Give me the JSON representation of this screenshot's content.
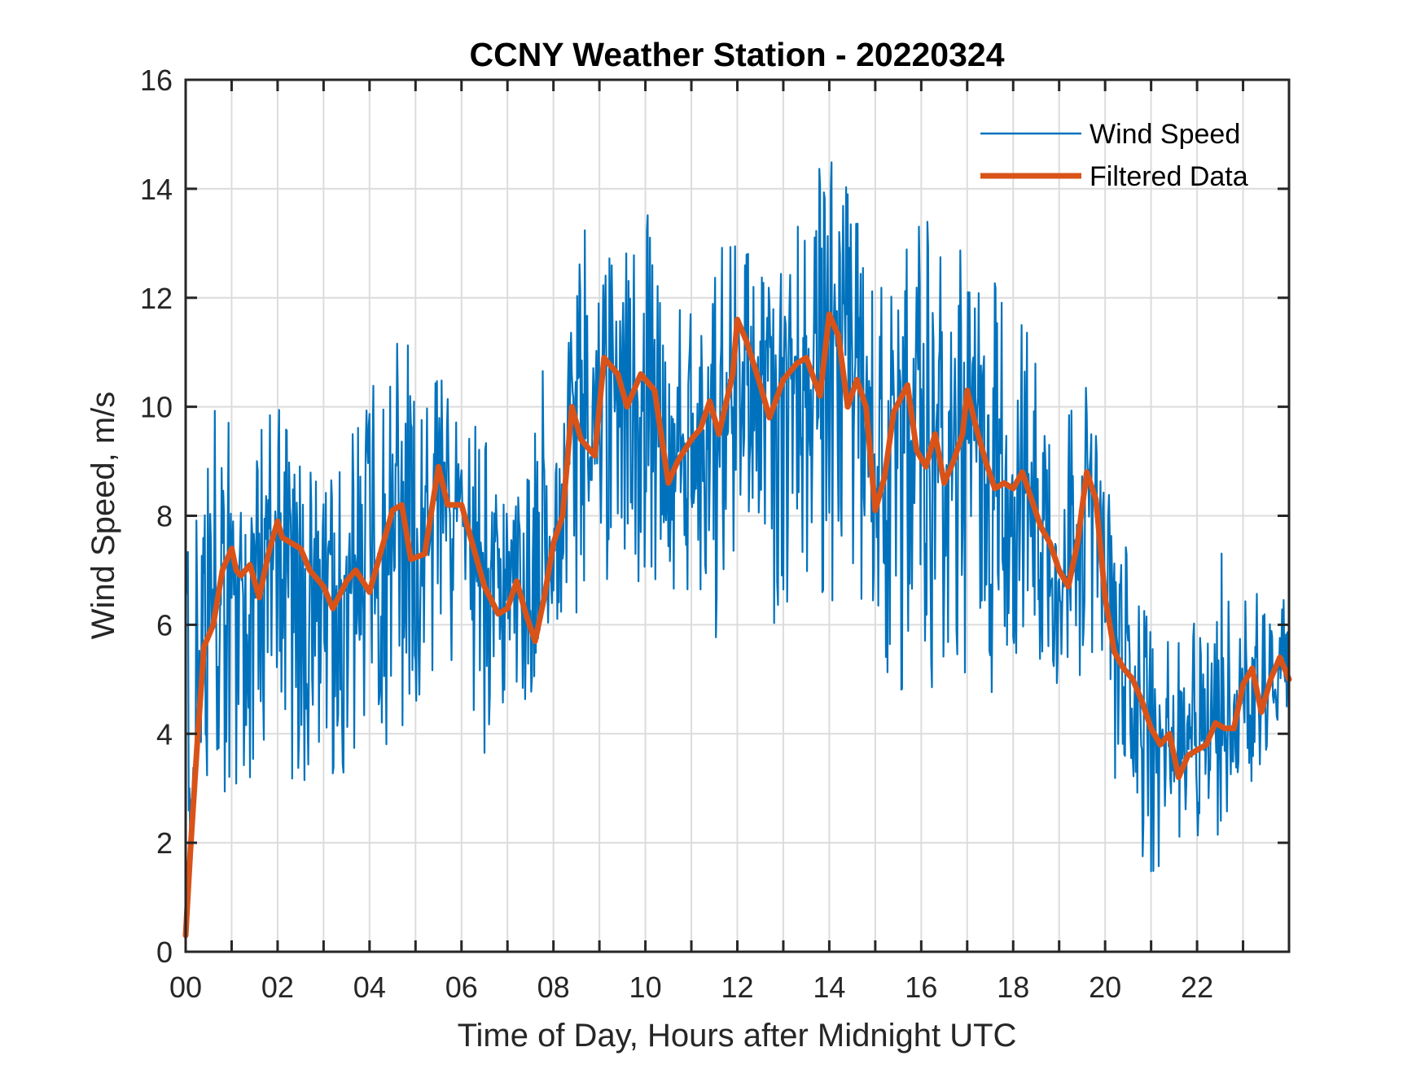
{
  "chart_data": {
    "type": "line",
    "title": "CCNY Weather Station - 20220324",
    "xlabel": "Time of Day, Hours after Midnight UTC",
    "ylabel": "Wind Speed, m/s",
    "xlim": [
      0,
      24
    ],
    "ylim": [
      0,
      16
    ],
    "x_ticks": [
      0,
      1,
      2,
      3,
      4,
      5,
      6,
      7,
      8,
      9,
      10,
      11,
      12,
      13,
      14,
      15,
      16,
      17,
      18,
      19,
      20,
      21,
      22,
      23,
      24
    ],
    "x_tick_labels": [
      {
        "value": 0,
        "label": "00"
      },
      {
        "value": 2,
        "label": "02"
      },
      {
        "value": 4,
        "label": "04"
      },
      {
        "value": 6,
        "label": "06"
      },
      {
        "value": 8,
        "label": "08"
      },
      {
        "value": 10,
        "label": "10"
      },
      {
        "value": 12,
        "label": "12"
      },
      {
        "value": 14,
        "label": "14"
      },
      {
        "value": 16,
        "label": "16"
      },
      {
        "value": 18,
        "label": "18"
      },
      {
        "value": 20,
        "label": "20"
      },
      {
        "value": 22,
        "label": "22"
      }
    ],
    "y_ticks": [
      0,
      2,
      4,
      6,
      8,
      10,
      12,
      14,
      16
    ],
    "y_tick_labels": [
      "0",
      "2",
      "4",
      "6",
      "8",
      "10",
      "12",
      "14",
      "16"
    ],
    "grid": true,
    "legend": {
      "position": "top-right",
      "boxed": false
    },
    "colors": {
      "wind_speed": "#0072BD",
      "filtered": "#D95319",
      "axis": "#262626",
      "grid": "#dcdcdc"
    },
    "series": [
      {
        "name": "Wind Speed",
        "style": "thin",
        "note": "raw 1-minute-ish samples; high-frequency noise around filtered trend. Envelope points (hour, min, max) read from chart.",
        "envelope": [
          [
            0.0,
            5.2,
            7.8
          ],
          [
            0.5,
            2.9,
            9.8
          ],
          [
            1.0,
            2.6,
            10.3
          ],
          [
            1.5,
            3.3,
            9.5
          ],
          [
            2.0,
            3.2,
            10.2
          ],
          [
            2.5,
            3.1,
            9.1
          ],
          [
            3.0,
            3.3,
            8.6
          ],
          [
            3.5,
            3.2,
            9.4
          ],
          [
            4.0,
            4.0,
            10.3
          ],
          [
            4.5,
            3.3,
            11.3
          ],
          [
            5.0,
            4.5,
            11.6
          ],
          [
            5.5,
            5.4,
            11.0
          ],
          [
            6.0,
            5.0,
            9.9
          ],
          [
            6.5,
            3.3,
            9.7
          ],
          [
            7.0,
            3.6,
            8.0
          ],
          [
            7.5,
            4.5,
            9.0
          ],
          [
            8.0,
            6.0,
            12.2
          ],
          [
            8.5,
            6.2,
            13.4
          ],
          [
            9.0,
            7.0,
            13.9
          ],
          [
            9.5,
            6.3,
            12.6
          ],
          [
            10.0,
            7.0,
            13.9
          ],
          [
            10.5,
            6.5,
            11.6
          ],
          [
            11.0,
            6.5,
            12.1
          ],
          [
            11.5,
            5.5,
            13.9
          ],
          [
            12.0,
            7.7,
            14.1
          ],
          [
            12.5,
            7.5,
            12.5
          ],
          [
            13.0,
            5.0,
            12.9
          ],
          [
            13.5,
            6.5,
            14.0
          ],
          [
            14.0,
            6.4,
            15.3
          ],
          [
            14.5,
            4.6,
            13.9
          ],
          [
            15.0,
            5.3,
            12.6
          ],
          [
            15.5,
            4.6,
            12.5
          ],
          [
            16.0,
            4.6,
            13.6
          ],
          [
            16.5,
            5.0,
            12.9
          ],
          [
            17.0,
            4.6,
            12.9
          ],
          [
            17.5,
            4.6,
            12.6
          ],
          [
            18.0,
            5.4,
            11.8
          ],
          [
            18.5,
            4.9,
            11.6
          ],
          [
            19.0,
            4.7,
            10.1
          ],
          [
            19.5,
            5.1,
            10.7
          ],
          [
            20.0,
            2.1,
            8.8
          ],
          [
            20.5,
            2.5,
            7.5
          ],
          [
            21.0,
            1.1,
            6.2
          ],
          [
            21.5,
            2.1,
            5.5
          ],
          [
            22.0,
            1.8,
            6.4
          ],
          [
            22.5,
            2.1,
            7.4
          ],
          [
            23.0,
            2.6,
            7.1
          ],
          [
            23.5,
            3.5,
            7.0
          ],
          [
            24.0,
            4.5,
            6.5
          ]
        ]
      },
      {
        "name": "Filtered Data",
        "style": "thick",
        "x": [
          0.0,
          0.1,
          0.25,
          0.4,
          0.6,
          0.8,
          1.0,
          1.1,
          1.2,
          1.4,
          1.6,
          1.8,
          2.0,
          2.1,
          2.3,
          2.5,
          2.7,
          3.0,
          3.2,
          3.5,
          3.7,
          4.0,
          4.2,
          4.5,
          4.7,
          4.9,
          5.2,
          5.5,
          5.7,
          6.0,
          6.2,
          6.5,
          6.8,
          7.0,
          7.2,
          7.4,
          7.6,
          7.8,
          8.0,
          8.2,
          8.4,
          8.6,
          8.9,
          9.1,
          9.4,
          9.6,
          9.9,
          10.2,
          10.5,
          10.7,
          11.0,
          11.2,
          11.4,
          11.6,
          11.9,
          12.0,
          12.2,
          12.5,
          12.7,
          13.0,
          13.3,
          13.5,
          13.8,
          14.0,
          14.2,
          14.4,
          14.6,
          14.8,
          15.0,
          15.2,
          15.4,
          15.7,
          15.9,
          16.1,
          16.3,
          16.5,
          16.7,
          16.9,
          17.0,
          17.2,
          17.4,
          17.6,
          17.8,
          18.0,
          18.2,
          18.4,
          18.6,
          18.8,
          19.0,
          19.2,
          19.4,
          19.6,
          19.8,
          20.0,
          20.2,
          20.4,
          20.6,
          20.8,
          21.0,
          21.2,
          21.4,
          21.6,
          21.8,
          22.0,
          22.2,
          22.4,
          22.6,
          22.8,
          23.0,
          23.2,
          23.4,
          23.6,
          23.8,
          24.0
        ],
        "y": [
          0.3,
          1.8,
          3.8,
          5.6,
          6.0,
          7.0,
          7.4,
          7.0,
          6.9,
          7.1,
          6.5,
          7.3,
          7.9,
          7.6,
          7.5,
          7.4,
          7.0,
          6.7,
          6.3,
          6.8,
          7.0,
          6.6,
          7.2,
          8.1,
          8.2,
          7.2,
          7.3,
          8.9,
          8.2,
          8.2,
          7.6,
          6.7,
          6.2,
          6.3,
          6.8,
          6.2,
          5.7,
          6.5,
          7.5,
          8.0,
          10.0,
          9.4,
          9.1,
          10.9,
          10.6,
          10.0,
          10.6,
          10.3,
          8.6,
          9.0,
          9.4,
          9.6,
          10.1,
          9.5,
          10.6,
          11.6,
          11.2,
          10.4,
          9.8,
          10.5,
          10.8,
          10.9,
          10.2,
          11.7,
          11.3,
          10.0,
          10.5,
          10.0,
          8.1,
          8.7,
          9.9,
          10.4,
          9.2,
          8.9,
          9.5,
          8.6,
          9.0,
          9.5,
          10.3,
          9.6,
          9.0,
          8.5,
          8.6,
          8.5,
          8.8,
          8.3,
          7.8,
          7.5,
          7.0,
          6.7,
          7.5,
          8.8,
          8.3,
          6.5,
          5.5,
          5.2,
          5.0,
          4.6,
          4.1,
          3.8,
          4.0,
          3.2,
          3.6,
          3.7,
          3.8,
          4.2,
          4.1,
          4.1,
          4.9,
          5.2,
          4.4,
          5.0,
          5.4,
          5.0
        ]
      }
    ]
  }
}
